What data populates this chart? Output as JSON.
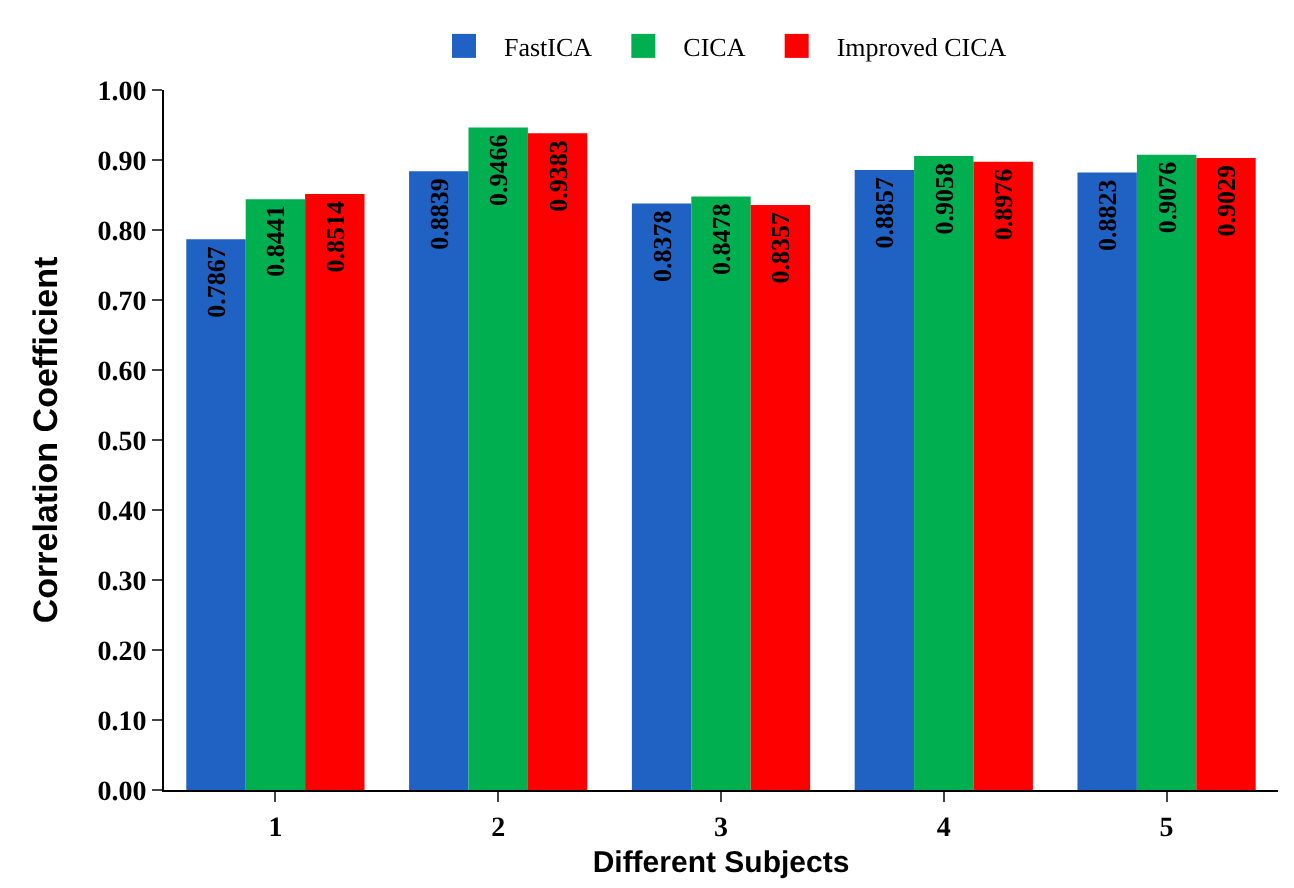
{
  "chart_data": {
    "type": "bar",
    "xlabel": "Different Subjects",
    "ylabel": "Correlation Coefficient",
    "categories": [
      "1",
      "2",
      "3",
      "4",
      "5"
    ],
    "series": [
      {
        "name": "FastICA",
        "color": "#1f62c4",
        "values": [
          0.7867,
          0.8839,
          0.8378,
          0.8857,
          0.8823
        ]
      },
      {
        "name": "CICA",
        "color": "#00b050",
        "values": [
          0.8441,
          0.9466,
          0.8478,
          0.9058,
          0.9076
        ]
      },
      {
        "name": "Improved CICA",
        "color": "#ff0000",
        "values": [
          0.8514,
          0.9383,
          0.8357,
          0.8976,
          0.9029
        ]
      }
    ],
    "ylim": [
      0,
      1
    ],
    "yticks": [
      {
        "value": 0,
        "label": "0.00"
      },
      {
        "value": 0.1,
        "label": "0.10"
      },
      {
        "value": 0.2,
        "label": "0.20"
      },
      {
        "value": 0.3,
        "label": "0.30"
      },
      {
        "value": 0.4,
        "label": "0.40"
      },
      {
        "value": 0.5,
        "label": "0.50"
      },
      {
        "value": 0.6,
        "label": "0.60"
      },
      {
        "value": 0.7,
        "label": "0.70"
      },
      {
        "value": 0.8,
        "label": "0.80"
      },
      {
        "value": 0.9,
        "label": "0.90"
      },
      {
        "value": 1,
        "label": "1.00"
      }
    ],
    "data_labels": true,
    "legend": "top"
  }
}
